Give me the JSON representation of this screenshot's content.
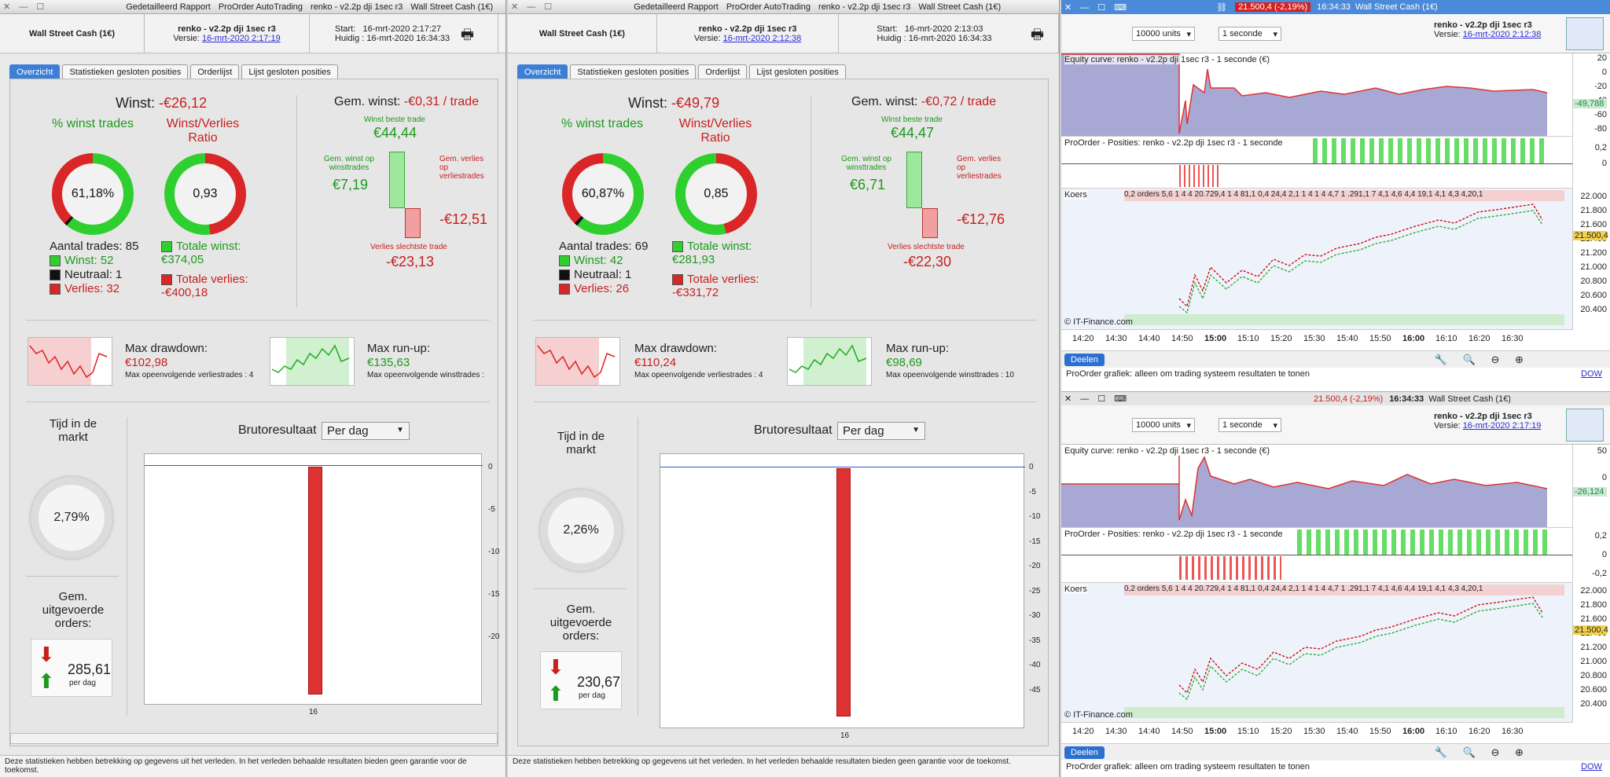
{
  "left": {
    "titlebar": {
      "items": [
        "Gedetailleerd Rapport",
        "ProOrder AutoTrading",
        "renko - v2.2p dji 1sec r3",
        "Wall Street Cash (1€)"
      ]
    },
    "info": {
      "instrument": "Wall Street Cash (1€)",
      "system": "renko - v2.2p dji 1sec r3",
      "versie_label": "Versie:",
      "versie": "16-mrt-2020 2:17:19",
      "start_label": "Start:",
      "start": "16-mrt-2020 2:17:27",
      "huidig_label": "Huidig :",
      "huidig": "16-mrt-2020 16:34:33"
    },
    "tabs": [
      "Overzicht",
      "Statistieken gesloten posities",
      "Orderlijst",
      "Lijst gesloten posities"
    ],
    "winst_label": "Winst:",
    "winst": "-€26,12",
    "pct_label": "% winst trades",
    "pct": "61,18%",
    "ratio_label": "Winst/Verlies Ratio",
    "ratio": "0,93",
    "aantal": "Aantal trades: 85",
    "winst_n": "Winst: 52",
    "neutraal": "Neutraal: 1",
    "verlies_n": "Verlies: 32",
    "tot_winst_label": "Totale winst:",
    "tot_winst": "€374,05",
    "tot_verlies_label": "Totale verlies:",
    "tot_verlies": "-€400,18",
    "gem_label": "Gem. winst:",
    "gem": "-€0,31 / trade",
    "beste_label": "Winst beste trade",
    "beste": "€44,44",
    "gemwinst_label": "Gem. winst op winsttrades",
    "gemwinst": "€7,19",
    "gemverlies_label": "Gem. verlies op verliestrades",
    "gemverlies": "-€12,51",
    "slechtste_label": "Verlies slechtste trade",
    "slechtste": "-€23,13",
    "dd_label": "Max drawdown:",
    "dd": "€102,98",
    "dd_sub": "Max opeenvolgende verliestrades : 4",
    "ru_label": "Max run-up:",
    "ru": "€135,63",
    "ru_sub": "Max opeenvolgende winsttrades :",
    "tijd_label": "Tijd in de markt",
    "tijd": "2,79%",
    "orders_label": "Gem. uitgevoerde orders:",
    "orders": "285,61",
    "perdag": "per dag",
    "bruto_label": "Brutoresultaat",
    "bruto_sel": "Per dag",
    "yticks": [
      "0",
      "-5",
      "-10",
      "-15",
      "-20"
    ],
    "xtick": "16",
    "footer": "Deze statistieken hebben betrekking op gegevens uit het verleden. In het verleden behaalde resultaten bieden geen garantie voor de toekomst."
  },
  "mid": {
    "titlebar": {
      "items": [
        "Gedetailleerd Rapport",
        "ProOrder AutoTrading",
        "renko - v2.2p dji 1sec r3",
        "Wall Street Cash (1€)"
      ]
    },
    "info": {
      "instrument": "Wall Street Cash (1€)",
      "system": "renko - v2.2p dji 1sec r3",
      "versie_label": "Versie:",
      "versie": "16-mrt-2020 2:12:38",
      "start_label": "Start:",
      "start": "16-mrt-2020 2:13:03",
      "huidig_label": "Huidig :",
      "huidig": "16-mrt-2020 16:34:33"
    },
    "tabs": [
      "Overzicht",
      "Statistieken gesloten posities",
      "Orderlijst",
      "Lijst gesloten posities"
    ],
    "winst_label": "Winst:",
    "winst": "-€49,79",
    "pct_label": "% winst trades",
    "pct": "60,87%",
    "ratio_label": "Winst/Verlies Ratio",
    "ratio": "0,85",
    "aantal": "Aantal trades: 69",
    "winst_n": "Winst: 42",
    "neutraal": "Neutraal: 1",
    "verlies_n": "Verlies: 26",
    "tot_winst_label": "Totale winst:",
    "tot_winst": "€281,93",
    "tot_verlies_label": "Totale verlies:",
    "tot_verlies": "-€331,72",
    "gem_label": "Gem. winst:",
    "gem": "-€0,72 / trade",
    "beste_label": "Winst beste trade",
    "beste": "€44,47",
    "gemwinst_label": "Gem. winst op winsttrades",
    "gemwinst": "€6,71",
    "gemverlies_label": "Gem. verlies op verliestrades",
    "gemverlies": "-€12,76",
    "slechtste_label": "Verlies slechtste trade",
    "slechtste": "-€22,30",
    "dd_label": "Max drawdown:",
    "dd": "€110,24",
    "dd_sub": "Max opeenvolgende verliestrades : 4",
    "ru_label": "Max run-up:",
    "ru": "€98,69",
    "ru_sub": "Max opeenvolgende winsttrades : 10",
    "tijd_label": "Tijd in de markt",
    "tijd": "2,26%",
    "orders_label": "Gem. uitgevoerde orders:",
    "orders": "230,67",
    "perdag": "per dag",
    "bruto_label": "Brutoresultaat",
    "bruto_sel": "Per dag",
    "yticks": [
      "0",
      "-5",
      "-10",
      "-15",
      "-20",
      "-25",
      "-30",
      "-35",
      "-40",
      "-45"
    ],
    "xtick": "16",
    "footer": "Deze statistieken hebben betrekking op gegevens uit het verleden. In het verleden behaalde resultaten bieden geen garantie voor de toekomst."
  },
  "right": {
    "top_price": "21.500,4 (-2,19%)",
    "top_time": "16:34:33",
    "top_instr": "Wall Street Cash (1€)",
    "units": "10000 units",
    "interval": "1 seconde",
    "charts": [
      {
        "system": "renko - v2.2p dji 1sec r3",
        "versie": "16-mrt-2020 2:12:38",
        "equity_label": "Equity curve: renko - v2.2p dji 1sec r3 - 1 seconde (€)",
        "eq_ticks": [
          "20",
          "0",
          "-20",
          "-40",
          "-60",
          "-80"
        ],
        "eq_last": "-49,788",
        "pos_label": "ProOrder - Posities: renko - v2.2p dji 1sec r3 - 1 seconde",
        "pos_ticks": [
          "0,2",
          "0"
        ]
      },
      {
        "system": "renko - v2.2p dji 1sec r3",
        "versie": "16-mrt-2020 2:17:19",
        "equity_label": "Equity curve: renko - v2.2p dji 1sec r3 - 1 seconde (€)",
        "eq_ticks": [
          "50",
          "0"
        ],
        "eq_last": "-26,124",
        "pos_label": "ProOrder - Posities: renko - v2.2p dji 1sec r3 - 1 seconde",
        "pos_ticks": [
          "0,2",
          "0",
          "-0,2"
        ]
      }
    ],
    "koers_label": "Koers",
    "orders_strip": "0,2 orders 5,6  1 4 4  20.729,4  1 4 81,1 0,4 24,4 2,1 1 4 1 4 4,7 1 .291,1 7 4,1 4,6 4,4 19,1 4,1 4,3 4,20,1",
    "price_ticks": [
      "22.000",
      "21.800",
      "21.600",
      "21.400",
      "21.200",
      "21.000",
      "20.800",
      "20.600",
      "20.400"
    ],
    "price_last": "21.500,4",
    "time_ticks": [
      "14:20",
      "14:30",
      "14:40",
      "14:50",
      "15:00",
      "15:10",
      "15:20",
      "15:30",
      "15:40",
      "15:50",
      "16:00",
      "16:10",
      "16:20",
      "16:30"
    ],
    "copyright": "© IT-Finance.com",
    "share": "Deelen",
    "note": "ProOrder grafiek: alleen om trading systeem resultaten te tonen",
    "dow": "DOW"
  }
}
